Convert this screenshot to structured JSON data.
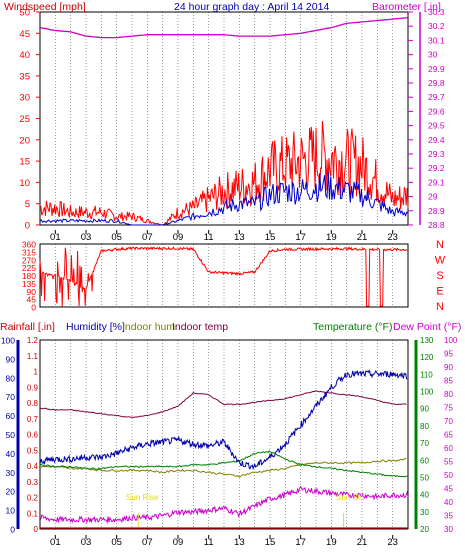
{
  "colors": {
    "wind": "#ff0000",
    "gust_line": "#0000cc",
    "barometer": "#cc00cc",
    "rainfall": "#cc0000",
    "humidity": "#0000aa",
    "indoor_hum": "#808000",
    "indoor_temp": "#800040",
    "temperature": "#008000",
    "dew_point": "#cc00cc",
    "grid": "#000000",
    "sun_text": "#e0e000",
    "background": "#ffffff"
  },
  "top": {
    "title": "24 hour graph day : April 14 2014",
    "left_label": "Windspeed [mph]",
    "right_label": "Barometer [.in]",
    "left_ticks": [
      "50",
      "45",
      "40",
      "35",
      "30",
      "25",
      "20",
      "15",
      "10",
      "5",
      "0"
    ],
    "right_ticks": [
      "30.3",
      "30.2",
      "30.1",
      "30",
      "29.9",
      "29.8",
      "29.7",
      "29.6",
      "29.5",
      "29.4",
      "29.3",
      "29.2",
      "29.1",
      "29",
      "28.9",
      "28.8"
    ]
  },
  "mid": {
    "left_ticks": [
      "360",
      "315",
      "270",
      "225",
      "180",
      "135",
      "90",
      "45",
      "0"
    ],
    "right_ticks": [
      "N",
      "W",
      "S",
      "E",
      "N"
    ]
  },
  "bottom": {
    "label_rain": "Rainfall [.in]",
    "label_hum": "Humidity [%]",
    "label_inhum": "Indoor hum",
    "label_intemp": "Indoor temp",
    "label_temp": "Temperature (°F)",
    "label_dew": "Dew Point (°F)",
    "ticks_pct": [
      "100",
      "90",
      "80",
      "70",
      "60",
      "50",
      "40",
      "30",
      "20",
      "10",
      "0"
    ],
    "ticks_rain": [
      "1.2",
      "1.1",
      "1",
      "0.9",
      "0.8",
      "0.7",
      "0.6",
      "0.5",
      "0.4",
      "0.3",
      "0.2",
      "0.1",
      "0"
    ],
    "ticks_temp": [
      "130",
      "120",
      "110",
      "100",
      "90",
      "80",
      "70",
      "60",
      "50",
      "40",
      "30",
      "20"
    ],
    "ticks_dew": [
      "100",
      "95",
      "90",
      "85",
      "80",
      "75",
      "70",
      "65",
      "60",
      "55",
      "50",
      "45",
      "40",
      "35",
      "30"
    ],
    "sun_rise": "Sun Rise",
    "sun_set": "Sun Set"
  },
  "x_ticks": [
    "01",
    "03",
    "05",
    "07",
    "09",
    "11",
    "13",
    "15",
    "17",
    "19",
    "21",
    "23"
  ],
  "chart_data": [
    {
      "type": "line",
      "title": "24 hour graph day : April 14 2014",
      "xlabel": "",
      "ylabel": "Windspeed [mph]",
      "ylabel_right": "Barometer [.in]",
      "ylim": [
        0,
        50
      ],
      "ylim_right": [
        28.8,
        30.3
      ],
      "x": [
        0,
        1,
        2,
        3,
        4,
        5,
        6,
        7,
        8,
        9,
        10,
        11,
        12,
        13,
        14,
        15,
        16,
        17,
        18,
        19,
        20,
        21,
        22,
        23,
        24
      ],
      "series": [
        {
          "name": "Windspeed",
          "values": [
            4,
            4,
            3,
            3,
            3,
            2,
            2,
            1,
            0,
            3,
            4,
            6,
            8,
            9,
            10,
            13,
            14,
            15,
            16,
            16,
            15,
            14,
            10,
            6,
            7
          ]
        },
        {
          "name": "Windspeed blue",
          "values": [
            1,
            1,
            1,
            1,
            1,
            1,
            0,
            0,
            0,
            1,
            2,
            3,
            4,
            5,
            5,
            7,
            8,
            8,
            9,
            9,
            8,
            7,
            5,
            3,
            3
          ]
        },
        {
          "name": "Barometer",
          "values": [
            30.19,
            30.17,
            30.16,
            30.13,
            30.12,
            30.12,
            30.13,
            30.14,
            30.14,
            30.14,
            30.14,
            30.14,
            30.14,
            30.13,
            30.13,
            30.13,
            30.14,
            30.15,
            30.17,
            30.19,
            30.22,
            30.23,
            30.24,
            30.25,
            30.26
          ]
        }
      ]
    },
    {
      "type": "line",
      "ylabel": "Wind direction",
      "ylim": [
        0,
        360
      ],
      "x": [
        0,
        1,
        2,
        3,
        4,
        5,
        6,
        7,
        8,
        9,
        10,
        11,
        12,
        13,
        14,
        15,
        16,
        17,
        18,
        19,
        20,
        21,
        22,
        23,
        24
      ],
      "series": [
        {
          "name": "Direction",
          "values": [
            200,
            180,
            150,
            100,
            320,
            330,
            335,
            335,
            335,
            335,
            330,
            200,
            195,
            190,
            200,
            320,
            330,
            330,
            332,
            332,
            333,
            330,
            328,
            328,
            328
          ]
        }
      ]
    },
    {
      "type": "line",
      "ylim": [
        0,
        100
      ],
      "x": [
        0,
        1,
        2,
        3,
        4,
        5,
        6,
        7,
        8,
        9,
        10,
        11,
        12,
        13,
        14,
        15,
        16,
        17,
        18,
        19,
        20,
        21,
        22,
        23,
        24
      ],
      "series": [
        {
          "name": "Humidity",
          "values": [
            36,
            37,
            37,
            38,
            38,
            40,
            43,
            45,
            46,
            47,
            45,
            44,
            46,
            35,
            33,
            38,
            45,
            55,
            65,
            75,
            82,
            82,
            82,
            82,
            81
          ]
        },
        {
          "name": "Indoor hum",
          "values": [
            33,
            33,
            32,
            32,
            31,
            31,
            31,
            31,
            30,
            31,
            31,
            30,
            29,
            28,
            30,
            31,
            32,
            34,
            35,
            35,
            35,
            35,
            36,
            36,
            37
          ]
        },
        {
          "name": "Indoor temp",
          "values": [
            64,
            63,
            63,
            62,
            61,
            60,
            59,
            60,
            62,
            65,
            72,
            71,
            66,
            66,
            67,
            68,
            69,
            71,
            73,
            72,
            71,
            70,
            68,
            66,
            66
          ]
        },
        {
          "name": "Temperature",
          "values": [
            34,
            33,
            33,
            32,
            32,
            33,
            33,
            33,
            33,
            33,
            34,
            34,
            35,
            36,
            40,
            41,
            37,
            34,
            33,
            32,
            31,
            30,
            29,
            28,
            28
          ]
        },
        {
          "name": "Dew Point",
          "values": [
            6,
            5,
            5,
            5,
            5,
            5,
            6,
            6,
            7,
            9,
            9,
            10,
            11,
            8,
            12,
            16,
            18,
            21,
            20,
            19,
            18,
            18,
            17,
            18,
            18
          ]
        }
      ]
    }
  ]
}
